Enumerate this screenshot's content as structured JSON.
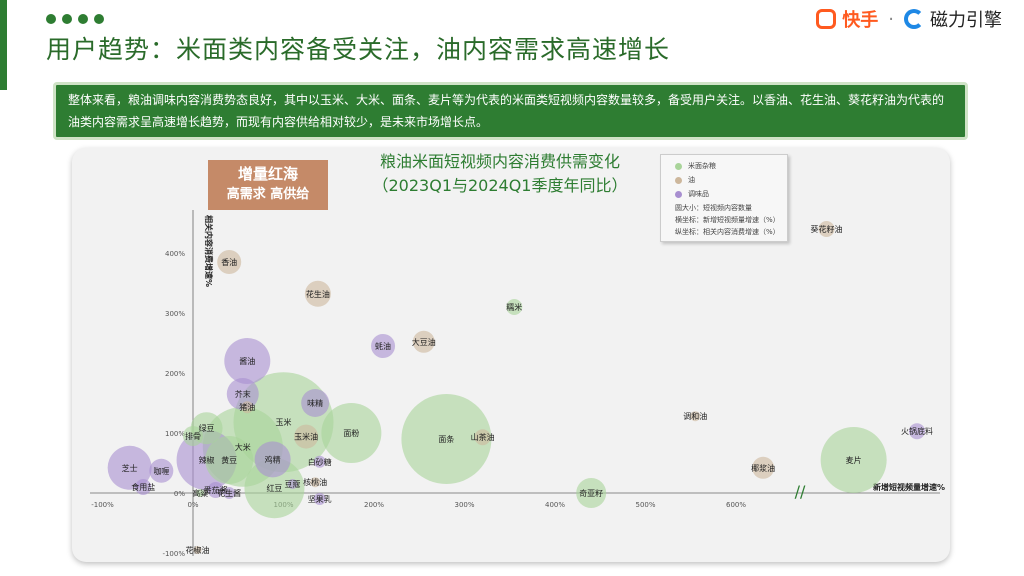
{
  "header": {
    "title": "用户趋势：米面类内容备受关注，油内容需求高速增长",
    "logo_kuaishou": "快手",
    "logo_separator": "·",
    "logo_cili": "磁力引擎"
  },
  "summary_text": "整体来看，粮油调味内容消费势态良好，其中以玉米、大米、面条、麦片等为代表的米面类短视频内容数量较多，备受用户关注。以香油、花生油、葵花籽油为代表的油类内容需求呈高速增长趋势，而现有内容供给相对较少，是未来市场增长点。",
  "badge": {
    "line1": "增量红海",
    "line2": "高需求 高供给"
  },
  "colors": {
    "green_theme": "#2e7d32",
    "rice": "#a9d49a",
    "oil": "#cdb79c",
    "seasoning": "#a88fd0",
    "badge": "#c58a68"
  },
  "chart_data": {
    "type": "scatter",
    "title": "粮油米面短视频内容消费供需变化",
    "subtitle": "（2023Q1与2024Q1季度年同比）",
    "xlabel": "新增短视频量增速%",
    "ylabel": "相关内容消费增速%",
    "x_ticks": [
      "-100%",
      "0%",
      "100%",
      "200%",
      "300%",
      "400%",
      "500%",
      "600%"
    ],
    "y_ticks": [
      "-100%",
      "0%",
      "100%",
      "200%",
      "300%",
      "400%"
    ],
    "xlim": [
      -100,
      600
    ],
    "ylim": [
      -100,
      400
    ],
    "axis_break": "//",
    "legend": {
      "items": [
        {
          "label": "米面杂粮",
          "color": "#a9d49a"
        },
        {
          "label": "油",
          "color": "#cdb79c"
        },
        {
          "label": "调味品",
          "color": "#a88fd0"
        }
      ],
      "notes": [
        "圆大小：短视频内容数量",
        "横坐标：新增短视频量增速（%）",
        "纵坐标：相关内容消费增速（%）"
      ]
    },
    "points": [
      {
        "label": "香油",
        "category": "油",
        "x": 40,
        "y": 385,
        "size": 12
      },
      {
        "label": "花生油",
        "category": "油",
        "x": 138,
        "y": 332,
        "size": 13
      },
      {
        "label": "糯米",
        "category": "米面杂粮",
        "x": 355,
        "y": 310,
        "size": 8
      },
      {
        "label": "大豆油",
        "category": "油",
        "x": 255,
        "y": 252,
        "size": 11
      },
      {
        "label": "蚝油",
        "category": "调味品",
        "x": 210,
        "y": 245,
        "size": 12
      },
      {
        "label": "酱油",
        "category": "调味品",
        "x": 60,
        "y": 220,
        "size": 23
      },
      {
        "label": "芥末",
        "category": "调味品",
        "x": 55,
        "y": 165,
        "size": 16
      },
      {
        "label": "猪油",
        "category": "油",
        "x": 60,
        "y": 143,
        "size": 6
      },
      {
        "label": "味精",
        "category": "调味品",
        "x": 135,
        "y": 150,
        "size": 14
      },
      {
        "label": "玉米",
        "category": "米面杂粮",
        "x": 100,
        "y": 118,
        "size": 50
      },
      {
        "label": "玉米油",
        "category": "油",
        "x": 125,
        "y": 94,
        "size": 12
      },
      {
        "label": "面粉",
        "category": "米面杂粮",
        "x": 175,
        "y": 100,
        "size": 30
      },
      {
        "label": "面条",
        "category": "米面杂粮",
        "x": 280,
        "y": 90,
        "size": 45
      },
      {
        "label": "山茶油",
        "category": "油",
        "x": 320,
        "y": 93,
        "size": 8
      },
      {
        "label": "调和油",
        "category": "油",
        "x": 555,
        "y": 128,
        "size": 5
      },
      {
        "label": "葵花籽油",
        "category": "油",
        "x": 700,
        "y": 440,
        "size": 8
      },
      {
        "label": "火锅底料",
        "category": "调味品",
        "x": 800,
        "y": 103,
        "size": 8
      },
      {
        "label": "麦片",
        "category": "米面杂粮",
        "x": 730,
        "y": 55,
        "size": 33
      },
      {
        "label": "椰浆油",
        "category": "油",
        "x": 630,
        "y": 42,
        "size": 11
      },
      {
        "label": "奇亚籽",
        "category": "米面杂粮",
        "x": 440,
        "y": 0,
        "size": 15
      },
      {
        "label": "绿豆",
        "category": "米面杂粮",
        "x": 15,
        "y": 108,
        "size": 16
      },
      {
        "label": "排骨",
        "category": "米面杂粮",
        "x": 0,
        "y": 95,
        "size": 10
      },
      {
        "label": "大米",
        "category": "米面杂粮",
        "x": 55,
        "y": 77,
        "size": 40
      },
      {
        "label": "辣椒",
        "category": "调味品",
        "x": 15,
        "y": 55,
        "size": 30
      },
      {
        "label": "黄豆",
        "category": "米面杂粮",
        "x": 40,
        "y": 55,
        "size": 24
      },
      {
        "label": "鸡精",
        "category": "调味品",
        "x": 88,
        "y": 56,
        "size": 18
      },
      {
        "label": "白砂糖",
        "category": "调味品",
        "x": 140,
        "y": 52,
        "size": 6
      },
      {
        "label": "核桃油",
        "category": "油",
        "x": 135,
        "y": 18,
        "size": 5
      },
      {
        "label": "红豆",
        "category": "米面杂粮",
        "x": 90,
        "y": 8,
        "size": 30
      },
      {
        "label": "豆蔻",
        "category": "调味品",
        "x": 110,
        "y": 15,
        "size": 5
      },
      {
        "label": "芝士",
        "category": "调味品",
        "x": -70,
        "y": 42,
        "size": 22
      },
      {
        "label": "咖喱",
        "category": "调味品",
        "x": -35,
        "y": 37,
        "size": 12
      },
      {
        "label": "食用盐",
        "category": "调味品",
        "x": -55,
        "y": 10,
        "size": 8
      },
      {
        "label": "番茄酱",
        "category": "调味品",
        "x": 25,
        "y": 5,
        "size": 8
      },
      {
        "label": "花生酱",
        "category": "调味品",
        "x": 40,
        "y": 0,
        "size": 6
      },
      {
        "label": "高粱",
        "category": "米面杂粮",
        "x": 8,
        "y": 0,
        "size": 4
      },
      {
        "label": "坚果乳",
        "category": "调味品",
        "x": 140,
        "y": -10,
        "size": 6
      },
      {
        "label": "花椒油",
        "category": "油",
        "x": 5,
        "y": -95,
        "size": 4
      }
    ]
  }
}
